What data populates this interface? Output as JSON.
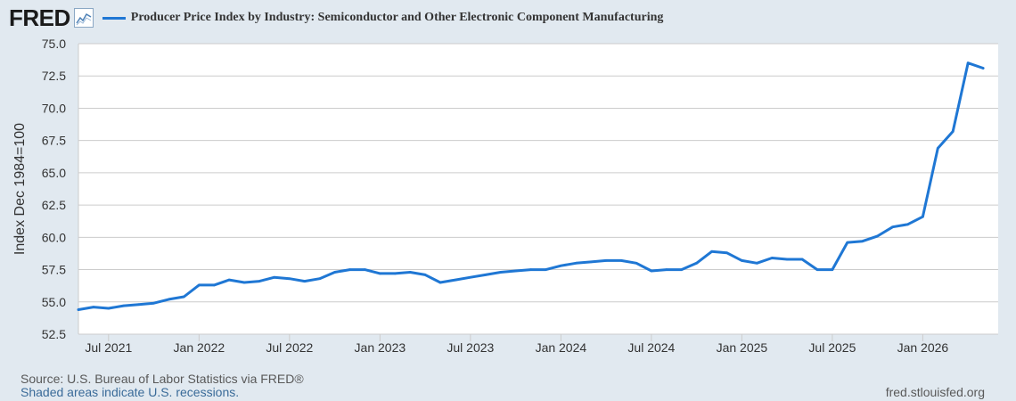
{
  "header": {
    "logo_text": "FRED",
    "logo_icon": "line-chart-icon"
  },
  "colors": {
    "series": "#1f77d4",
    "background": "#e1e9f0",
    "plot_bg": "#ffffff",
    "grid": "#cccccc"
  },
  "chart_data": {
    "type": "line",
    "title": "Producer Price Index by Industry: Semiconductor and Other Electronic Component Manufacturing",
    "ylabel": "Index Dec 1984=100",
    "xlabel": "",
    "ylim": [
      52.5,
      75.0
    ],
    "yticks": [
      "75.0",
      "72.5",
      "70.0",
      "67.5",
      "65.0",
      "62.5",
      "60.0",
      "57.5",
      "55.0",
      "52.5"
    ],
    "xticks": [
      "Jul 2021",
      "Jan 2022",
      "Jul 2022",
      "Jan 2023",
      "Jul 2023",
      "Jan 2024",
      "Jul 2024",
      "Jan 2025",
      "Jul 2025",
      "Jan 2026"
    ],
    "xtick_months": [
      "2021-07",
      "2022-01",
      "2022-07",
      "2023-01",
      "2023-07",
      "2024-01",
      "2024-07",
      "2025-01",
      "2025-07",
      "2026-01"
    ],
    "xlim": [
      "2021-05",
      "2026-06"
    ],
    "grid": true,
    "legend": "top-left",
    "series": [
      {
        "name": "Producer Price Index by Industry: Semiconductor and Other Electronic Component Manufacturing",
        "x": [
          "2021-05",
          "2021-06",
          "2021-07",
          "2021-08",
          "2021-09",
          "2021-10",
          "2021-11",
          "2021-12",
          "2022-01",
          "2022-02",
          "2022-03",
          "2022-04",
          "2022-05",
          "2022-06",
          "2022-07",
          "2022-08",
          "2022-09",
          "2022-10",
          "2022-11",
          "2022-12",
          "2023-01",
          "2023-02",
          "2023-03",
          "2023-04",
          "2023-05",
          "2023-06",
          "2023-07",
          "2023-08",
          "2023-09",
          "2023-10",
          "2023-11",
          "2023-12",
          "2024-01",
          "2024-02",
          "2024-03",
          "2024-04",
          "2024-05",
          "2024-06",
          "2024-07",
          "2024-08",
          "2024-09",
          "2024-10",
          "2024-11",
          "2024-12",
          "2025-01",
          "2025-02",
          "2025-03",
          "2025-04",
          "2025-05",
          "2025-06",
          "2025-07",
          "2025-08",
          "2025-09",
          "2025-10",
          "2025-11",
          "2025-12",
          "2026-01",
          "2026-02",
          "2026-03",
          "2026-04",
          "2026-05"
        ],
        "values": [
          54.4,
          54.6,
          54.5,
          54.7,
          54.8,
          54.9,
          55.2,
          55.4,
          56.3,
          56.3,
          56.7,
          56.5,
          56.6,
          56.9,
          56.8,
          56.6,
          56.8,
          57.3,
          57.5,
          57.5,
          57.2,
          57.2,
          57.3,
          57.1,
          56.5,
          56.7,
          56.9,
          57.1,
          57.3,
          57.4,
          57.5,
          57.5,
          57.8,
          58.0,
          58.1,
          58.2,
          58.2,
          58.0,
          57.4,
          57.5,
          57.5,
          58.0,
          58.9,
          58.8,
          58.2,
          58.0,
          58.4,
          58.3,
          58.3,
          57.5,
          57.5,
          59.6,
          59.7,
          60.1,
          60.8,
          61.0,
          61.6,
          66.9,
          68.2,
          73.5,
          73.1
        ]
      }
    ]
  },
  "footer": {
    "source": "Source: U.S. Bureau of Labor Statistics via FRED®",
    "recession_note": "Shaded areas indicate U.S. recessions.",
    "url": "fred.stlouisfed.org"
  }
}
